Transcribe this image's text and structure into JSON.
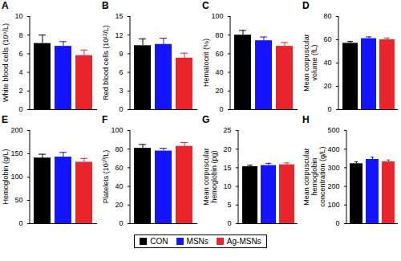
{
  "chart_data": [
    {
      "type": "bar",
      "title": "A",
      "ylabel": "White blood cells (10⁹/L)",
      "categories": [
        "CON",
        "MSNs",
        "Ag-MSNs"
      ],
      "values": [
        7.1,
        6.8,
        5.8
      ],
      "errors": [
        0.9,
        0.5,
        0.6
      ],
      "colors": [
        "#000000",
        "#1414ff",
        "#e8262b"
      ],
      "ylim": [
        0,
        10
      ],
      "yticks": [
        0,
        2,
        4,
        6,
        8,
        10
      ],
      "tick_labels": "y",
      "legend": "bottom"
    },
    {
      "type": "bar",
      "title": "B",
      "ylabel": "Red blood cells (10¹²/L)",
      "categories": [
        "CON",
        "MSNs",
        "Ag-MSNs"
      ],
      "values": [
        10.3,
        10.5,
        8.3
      ],
      "errors": [
        1.1,
        1.0,
        0.8
      ],
      "colors": [
        "#000000",
        "#1414ff",
        "#e8262b"
      ],
      "ylim": [
        0,
        15
      ],
      "yticks": [
        0,
        3,
        6,
        9,
        12,
        15
      ],
      "tick_labels": "y",
      "legend": "bottom"
    },
    {
      "type": "bar",
      "title": "C",
      "ylabel": "Hematocrit (%)",
      "categories": [
        "CON",
        "MSNs",
        "Ag-MSNs"
      ],
      "values": [
        80,
        74,
        68
      ],
      "errors": [
        5,
        4,
        4
      ],
      "colors": [
        "#000000",
        "#1414ff",
        "#e8262b"
      ],
      "ylim": [
        0,
        100
      ],
      "yticks": [
        0,
        20,
        40,
        60,
        80,
        100
      ],
      "tick_labels": "y",
      "legend": "bottom"
    },
    {
      "type": "bar",
      "title": "D",
      "ylabel": "Mean corpuscular\nvolume (fL)",
      "categories": [
        "CON",
        "MSNs",
        "Ag-MSNs"
      ],
      "values": [
        57,
        61,
        60
      ],
      "errors": [
        1.5,
        1.5,
        1.5
      ],
      "colors": [
        "#000000",
        "#1414ff",
        "#e8262b"
      ],
      "ylim": [
        0,
        80
      ],
      "yticks": [
        0,
        20,
        40,
        60,
        80
      ],
      "tick_labels": "y",
      "legend": "bottom"
    },
    {
      "type": "bar",
      "title": "E",
      "ylabel": "Hemoglobin (g/L)",
      "categories": [
        "CON",
        "MSNs",
        "Ag-MSNs"
      ],
      "values": [
        141,
        143,
        132
      ],
      "errors": [
        8,
        10,
        8
      ],
      "colors": [
        "#000000",
        "#1414ff",
        "#e8262b"
      ],
      "ylim": [
        0,
        200
      ],
      "yticks": [
        0,
        50,
        100,
        150,
        200
      ],
      "tick_labels": "y",
      "legend": "bottom"
    },
    {
      "type": "bar",
      "title": "F",
      "ylabel": "Platelets (10¹⁰/L)",
      "categories": [
        "CON",
        "MSNs",
        "Ag-MSNs"
      ],
      "values": [
        81,
        78,
        83
      ],
      "errors": [
        4,
        3,
        4
      ],
      "colors": [
        "#000000",
        "#1414ff",
        "#e8262b"
      ],
      "ylim": [
        0,
        100
      ],
      "yticks": [
        0,
        20,
        40,
        60,
        80,
        100
      ],
      "tick_labels": "y",
      "legend": "bottom"
    },
    {
      "type": "bar",
      "title": "G",
      "ylabel": "Mean corpuscular\nhemoglobin (pg)",
      "categories": [
        "CON",
        "MSNs",
        "Ag-MSNs"
      ],
      "values": [
        15.3,
        15.6,
        15.8
      ],
      "errors": [
        0.4,
        0.6,
        0.5
      ],
      "colors": [
        "#000000",
        "#1414ff",
        "#e8262b"
      ],
      "ylim": [
        0,
        25
      ],
      "yticks": [
        0,
        5,
        10,
        15,
        20,
        25
      ],
      "tick_labels": "y",
      "legend": "bottom"
    },
    {
      "type": "bar",
      "title": "H",
      "ylabel": "Mean corpuscular\nhemoglobin\nconcentration (g/L)",
      "categories": [
        "CON",
        "MSNs",
        "Ag-MSNs"
      ],
      "values": [
        322,
        345,
        332
      ],
      "errors": [
        10,
        12,
        10
      ],
      "colors": [
        "#000000",
        "#1414ff",
        "#e8262b"
      ],
      "ylim": [
        0,
        500
      ],
      "yticks": [
        0,
        100,
        200,
        300,
        400,
        500
      ],
      "tick_labels": "y",
      "legend": "bottom"
    }
  ]
}
